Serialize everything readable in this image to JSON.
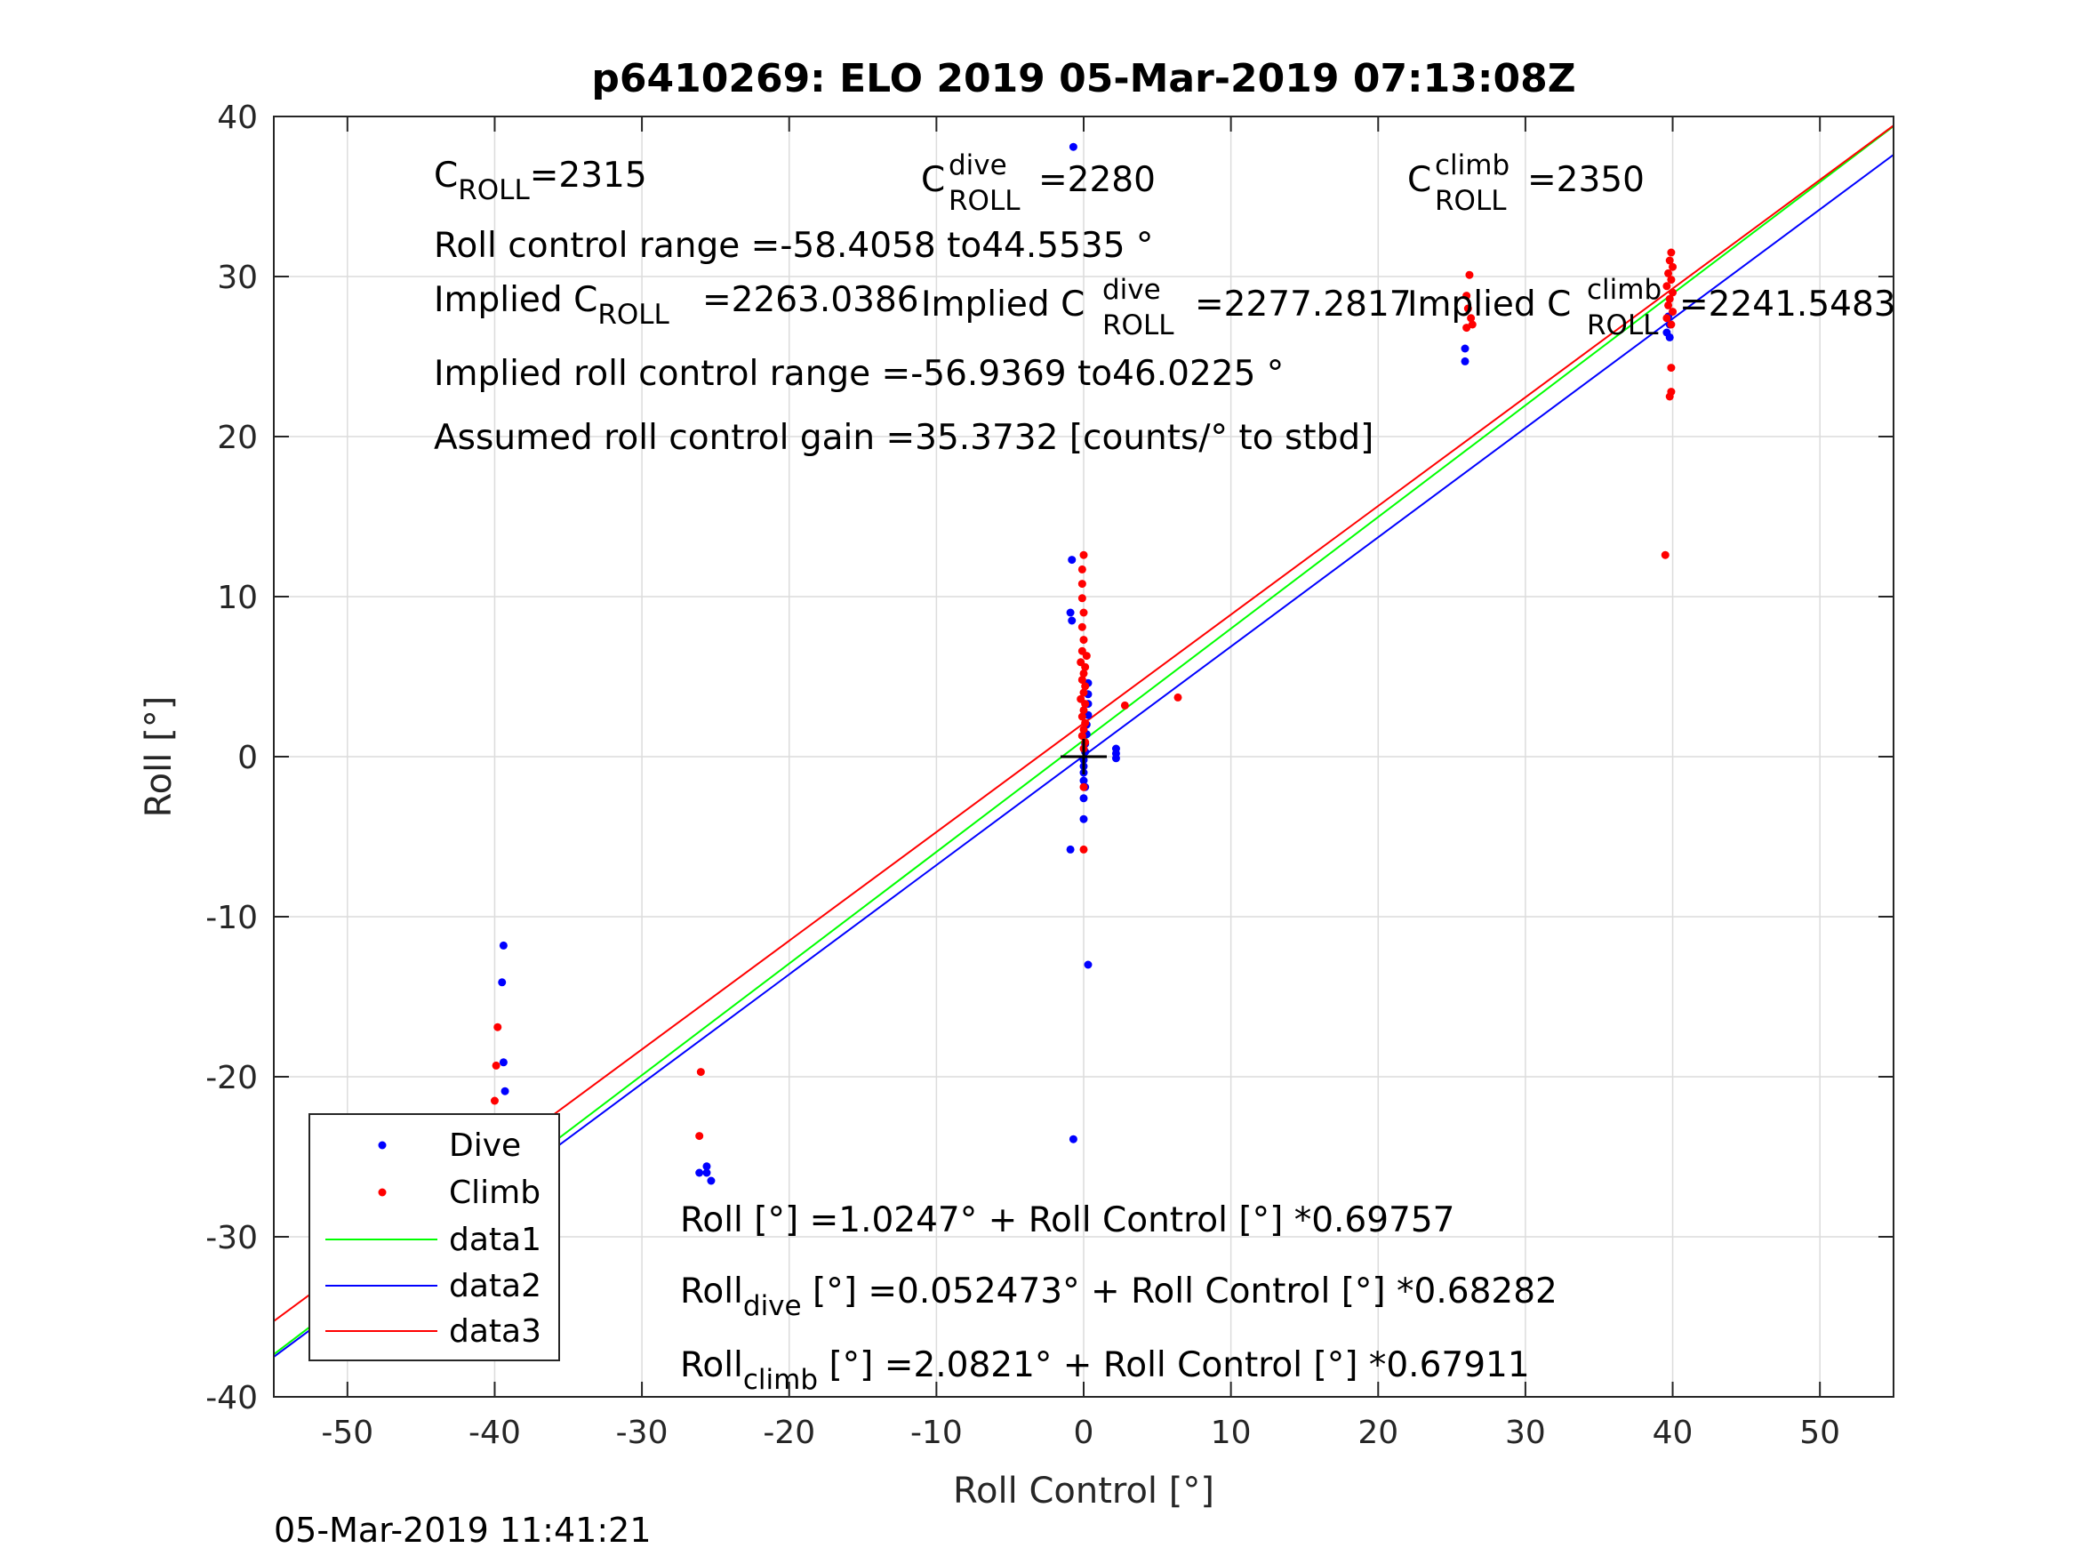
{
  "figure": {
    "title": "p6410269: ELO 2019 05-Mar-2019 07:13:08Z",
    "timestamp": "05-Mar-2019 11:41:21"
  },
  "annotations": {
    "c_roll_label": "C",
    "c_roll_sub": "ROLL",
    "c_roll_value": "=2315",
    "c_dive_label": "C",
    "c_dive_sup": "dive",
    "c_dive_sub": "ROLL",
    "c_dive_value": "=2280",
    "c_climb_label": "C",
    "c_climb_sup": "climb",
    "c_climb_sub": "ROLL",
    "c_climb_value": "=2350",
    "roll_range": "Roll control range =-58.4058 to44.5535 °",
    "implied_c_label": "Implied C",
    "implied_c_sub": "ROLL",
    "implied_c_value": "=2263.0386",
    "implied_dive_label": "Implied C",
    "implied_dive_sup": "dive",
    "implied_dive_sub": "ROLL",
    "implied_dive_value": "=2277.2817",
    "implied_climb_label": "Implied C",
    "implied_climb_sup": "climb",
    "implied_climb_sub": "ROLL",
    "implied_climb_value": "=2241.5483",
    "implied_range": "Implied roll control range =-56.9369 to46.0225 °",
    "gain": "Assumed roll control gain =35.3732 [counts/° to stbd]",
    "fit_all": "Roll [°] =1.0247° + Roll Control [°] *0.69757",
    "fit_dive_head": "Roll",
    "fit_dive_sub": "dive",
    "fit_dive_tail": " [°] =0.052473° + Roll Control [°] *0.68282",
    "fit_climb_head": "Roll",
    "fit_climb_sub": "climb",
    "fit_climb_tail": " [°] =2.0821° + Roll Control [°] *0.67911"
  },
  "chart_data": {
    "type": "scatter",
    "xlabel": "Roll Control [°]",
    "ylabel": "Roll [°]",
    "xlim": [
      -55,
      55
    ],
    "ylim": [
      -40,
      40
    ],
    "xticks": [
      -50,
      -40,
      -30,
      -20,
      -10,
      0,
      10,
      20,
      30,
      40,
      50
    ],
    "yticks": [
      -40,
      -30,
      -20,
      -10,
      0,
      10,
      20,
      30,
      40
    ],
    "grid": true,
    "legend_position": "bottom-left",
    "colors": {
      "dive": "#0000ff",
      "climb": "#ff0000",
      "data1": "#00ff00",
      "data2": "#0000ff",
      "data3": "#ff0000"
    },
    "center_marker": [
      0,
      0
    ],
    "series": [
      {
        "name": "Dive",
        "kind": "points",
        "points": [
          [
            -0.7,
            38.1
          ],
          [
            -0.8,
            12.3
          ],
          [
            -0.9,
            9.0
          ],
          [
            -0.8,
            8.5
          ],
          [
            -0.9,
            -5.8
          ],
          [
            -0.7,
            -23.9
          ],
          [
            0.3,
            4.6
          ],
          [
            0.3,
            3.9
          ],
          [
            0.3,
            3.3
          ],
          [
            0.3,
            2.6
          ],
          [
            0.2,
            2.0
          ],
          [
            0.2,
            1.4
          ],
          [
            0.1,
            0.8
          ],
          [
            0.1,
            0.3
          ],
          [
            0.0,
            -0.2
          ],
          [
            0.0,
            -0.6
          ],
          [
            0.0,
            -1.0
          ],
          [
            0.0,
            -1.5
          ],
          [
            0.1,
            -1.9
          ],
          [
            0.0,
            -2.6
          ],
          [
            0.0,
            -3.9
          ],
          [
            0.3,
            -13.0
          ],
          [
            2.2,
            0.5
          ],
          [
            2.2,
            0.2
          ],
          [
            2.2,
            -0.1
          ],
          [
            25.9,
            25.5
          ],
          [
            25.9,
            24.7
          ],
          [
            39.7,
            27.5
          ],
          [
            39.8,
            27.0
          ],
          [
            39.6,
            26.5
          ],
          [
            39.8,
            26.2
          ],
          [
            -39.4,
            -11.8
          ],
          [
            -39.5,
            -14.1
          ],
          [
            -39.4,
            -19.1
          ],
          [
            -39.3,
            -20.9
          ],
          [
            -39.4,
            -22.7
          ],
          [
            -39.6,
            -23.4
          ],
          [
            -39.4,
            -24.3
          ],
          [
            -39.3,
            -25.1
          ],
          [
            -39.6,
            -25.8
          ],
          [
            -39.4,
            -26.4
          ],
          [
            -39.3,
            -27.0
          ],
          [
            -39.5,
            -27.6
          ],
          [
            -39.4,
            -28.2
          ],
          [
            -39.6,
            -28.8
          ],
          [
            -39.3,
            -29.4
          ],
          [
            -39.4,
            -30.1
          ],
          [
            -39.5,
            -30.7
          ],
          [
            -39.3,
            -31.4
          ],
          [
            -26.1,
            -26.0
          ],
          [
            -25.6,
            -25.6
          ],
          [
            -25.3,
            -26.5
          ],
          [
            -25.6,
            -26.0
          ]
        ]
      },
      {
        "name": "Climb",
        "kind": "points",
        "points": [
          [
            0.0,
            12.6
          ],
          [
            -0.1,
            11.7
          ],
          [
            -0.1,
            10.8
          ],
          [
            -0.1,
            9.9
          ],
          [
            0.0,
            9.0
          ],
          [
            -0.1,
            8.1
          ],
          [
            0.0,
            7.3
          ],
          [
            -0.1,
            6.6
          ],
          [
            0.2,
            6.3
          ],
          [
            -0.2,
            5.9
          ],
          [
            0.1,
            5.6
          ],
          [
            0.0,
            5.2
          ],
          [
            -0.1,
            4.8
          ],
          [
            0.1,
            4.4
          ],
          [
            0.0,
            4.0
          ],
          [
            -0.2,
            3.6
          ],
          [
            0.1,
            3.3
          ],
          [
            0.0,
            2.9
          ],
          [
            -0.1,
            2.5
          ],
          [
            0.1,
            2.1
          ],
          [
            0.0,
            1.7
          ],
          [
            -0.1,
            1.3
          ],
          [
            0.1,
            0.9
          ],
          [
            0.0,
            0.5
          ],
          [
            0.0,
            -1.9
          ],
          [
            0.0,
            -5.8
          ],
          [
            2.8,
            3.2
          ],
          [
            6.4,
            3.7
          ],
          [
            26.0,
            28.8
          ],
          [
            26.2,
            30.1
          ],
          [
            26.1,
            28.0
          ],
          [
            26.3,
            27.4
          ],
          [
            26.0,
            26.8
          ],
          [
            26.4,
            27.0
          ],
          [
            39.5,
            12.6
          ],
          [
            39.8,
            22.5
          ],
          [
            39.9,
            22.8
          ],
          [
            39.9,
            24.3
          ],
          [
            39.9,
            31.5
          ],
          [
            39.8,
            31.0
          ],
          [
            40.0,
            30.6
          ],
          [
            39.7,
            30.2
          ],
          [
            39.9,
            29.8
          ],
          [
            39.6,
            29.4
          ],
          [
            40.0,
            29.0
          ],
          [
            39.8,
            28.6
          ],
          [
            39.7,
            28.2
          ],
          [
            40.0,
            27.8
          ],
          [
            39.6,
            27.4
          ],
          [
            39.9,
            27.0
          ],
          [
            -39.8,
            -16.9
          ],
          [
            -39.9,
            -19.3
          ],
          [
            -40.0,
            -21.5
          ],
          [
            -39.8,
            -22.6
          ],
          [
            -39.9,
            -23.5
          ],
          [
            -39.7,
            -24.3
          ],
          [
            -39.9,
            -25.1
          ],
          [
            -39.8,
            -26.0
          ],
          [
            -40.0,
            -26.8
          ],
          [
            -39.8,
            -27.5
          ],
          [
            -40.0,
            -28.0
          ],
          [
            -26.0,
            -19.7
          ],
          [
            -26.1,
            -23.7
          ]
        ]
      },
      {
        "name": "data1",
        "kind": "line",
        "intercept": 1.0247,
        "slope": 0.69757
      },
      {
        "name": "data2",
        "kind": "line",
        "intercept": 0.052473,
        "slope": 0.68282
      },
      {
        "name": "data3",
        "kind": "line",
        "intercept": 2.0821,
        "slope": 0.67911
      }
    ]
  }
}
